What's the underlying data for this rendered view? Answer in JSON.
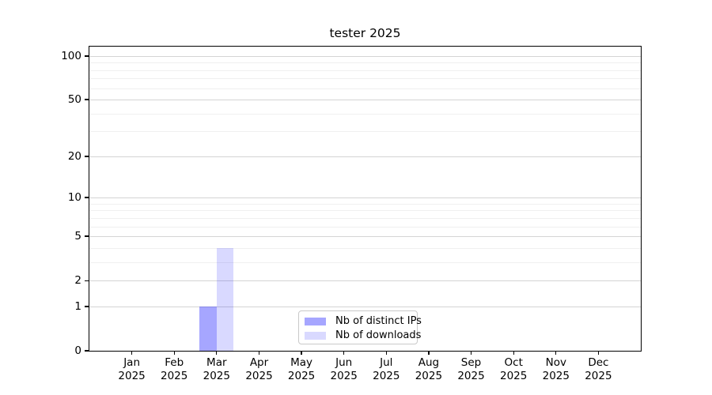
{
  "title": "tester 2025",
  "chart_data": {
    "type": "bar",
    "title": "tester 2025",
    "categories": [
      {
        "month": "Jan",
        "year": "2025"
      },
      {
        "month": "Feb",
        "year": "2025"
      },
      {
        "month": "Mar",
        "year": "2025"
      },
      {
        "month": "Apr",
        "year": "2025"
      },
      {
        "month": "May",
        "year": "2025"
      },
      {
        "month": "Jun",
        "year": "2025"
      },
      {
        "month": "Jul",
        "year": "2025"
      },
      {
        "month": "Aug",
        "year": "2025"
      },
      {
        "month": "Sep",
        "year": "2025"
      },
      {
        "month": "Oct",
        "year": "2025"
      },
      {
        "month": "Nov",
        "year": "2025"
      },
      {
        "month": "Dec",
        "year": "2025"
      }
    ],
    "series": [
      {
        "name": "Nb of distinct IPs",
        "color": "rgba(0,0,255,0.35)",
        "values": [
          0,
          0,
          1,
          0,
          0,
          0,
          0,
          0,
          0,
          0,
          0,
          0
        ]
      },
      {
        "name": "Nb of downloads",
        "color": "rgba(0,0,255,0.15)",
        "values": [
          0,
          0,
          4,
          0,
          0,
          0,
          0,
          0,
          0,
          0,
          0,
          0
        ]
      }
    ],
    "xlabel": "",
    "ylabel": "",
    "yscale": "log10(1+x)",
    "ylim": [
      0,
      116
    ],
    "y_major_ticks": [
      0,
      1,
      2,
      5,
      10,
      20,
      50,
      100
    ],
    "y_minor_gridlines": [
      3,
      4,
      6,
      7,
      8,
      9,
      30,
      40,
      60,
      70,
      80,
      90
    ],
    "grid": "horizontal major and minor gridlines",
    "legend_position": "lower center inside plot",
    "colors": {
      "axis": "#000000",
      "major_grid": "#d4d4d4",
      "minor_grid": "#f0f0f0",
      "background": "#ffffff"
    }
  }
}
